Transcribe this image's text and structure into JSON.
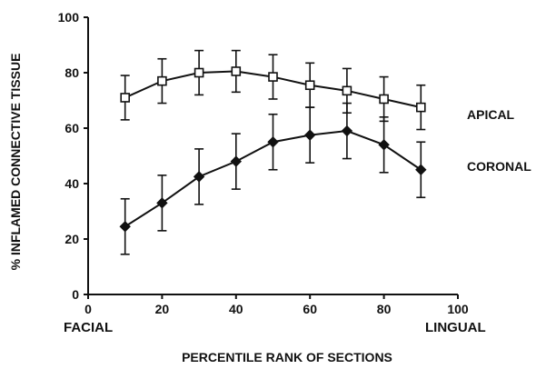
{
  "chart_data": {
    "type": "line",
    "xlabel": "PERCENTILE RANK OF SECTIONS",
    "ylabel": "% INFLAMED CONNECTIVE TISSUE",
    "xlim": [
      0,
      100
    ],
    "ylim": [
      0,
      100
    ],
    "xticks": [
      0,
      20,
      40,
      60,
      80,
      100
    ],
    "yticks": [
      0,
      20,
      40,
      60,
      80,
      100
    ],
    "x_end_labels": {
      "left": "FACIAL",
      "right": "LINGUAL"
    },
    "grid": false,
    "legend": "direct labels at right of each series",
    "series": [
      {
        "name": "APICAL",
        "marker": "open-square",
        "x": [
          10,
          20,
          30,
          40,
          50,
          60,
          70,
          80,
          90
        ],
        "y": [
          71,
          77,
          80,
          80.5,
          78.5,
          75.5,
          73.5,
          70.5,
          67.5
        ],
        "err": [
          8,
          8,
          8,
          7.5,
          8,
          8,
          8,
          8,
          8
        ]
      },
      {
        "name": "CORONAL",
        "marker": "filled-diamond",
        "x": [
          10,
          20,
          30,
          40,
          50,
          60,
          70,
          80,
          90
        ],
        "y": [
          24.5,
          33,
          42.5,
          48,
          55,
          57.5,
          59,
          54,
          45
        ],
        "err": [
          10,
          10,
          10,
          10,
          10,
          10,
          10,
          10,
          10
        ]
      }
    ]
  }
}
